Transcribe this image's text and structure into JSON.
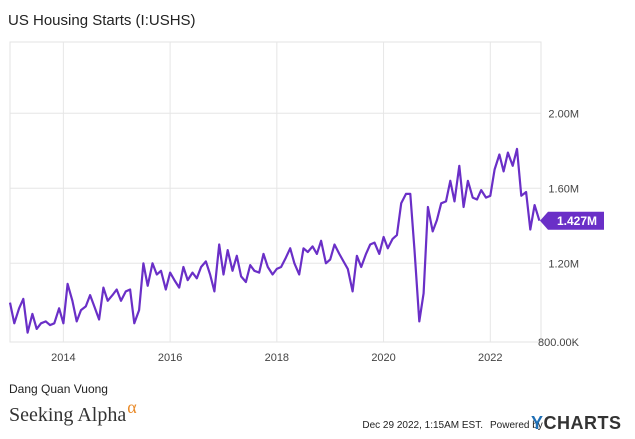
{
  "chart_data": {
    "type": "line",
    "title": "US Housing Starts (I:USHS)",
    "xlabel": "",
    "ylabel": "",
    "x_ticks": [
      "2014",
      "2016",
      "2018",
      "2020",
      "2022"
    ],
    "y_ticks": [
      "800.00K",
      "1.20M",
      "1.60M",
      "2.00M"
    ],
    "y_tick_values": [
      800000,
      1200000,
      1600000,
      2000000
    ],
    "xlim": [
      2013.0,
      2022.95
    ],
    "ylim": [
      780000,
      2380000
    ],
    "grid": true,
    "series": [
      {
        "color": "#6a2fc7",
        "last_value_label": "1.427M",
        "points": [
          [
            2013.0,
            990000
          ],
          [
            2013.08,
            880000
          ],
          [
            2013.17,
            960000
          ],
          [
            2013.25,
            1010000
          ],
          [
            2013.33,
            830000
          ],
          [
            2013.42,
            930000
          ],
          [
            2013.5,
            850000
          ],
          [
            2013.58,
            880000
          ],
          [
            2013.67,
            890000
          ],
          [
            2013.75,
            870000
          ],
          [
            2013.83,
            880000
          ],
          [
            2013.92,
            960000
          ],
          [
            2014.0,
            880000
          ],
          [
            2014.08,
            1090000
          ],
          [
            2014.17,
            1000000
          ],
          [
            2014.25,
            890000
          ],
          [
            2014.33,
            950000
          ],
          [
            2014.42,
            970000
          ],
          [
            2014.5,
            1030000
          ],
          [
            2014.58,
            970000
          ],
          [
            2014.67,
            900000
          ],
          [
            2014.75,
            1070000
          ],
          [
            2014.83,
            1000000
          ],
          [
            2014.92,
            1030000
          ],
          [
            2015.0,
            1060000
          ],
          [
            2015.08,
            1000000
          ],
          [
            2015.17,
            1050000
          ],
          [
            2015.25,
            1060000
          ],
          [
            2015.33,
            880000
          ],
          [
            2015.42,
            950000
          ],
          [
            2015.5,
            1200000
          ],
          [
            2015.58,
            1080000
          ],
          [
            2015.67,
            1200000
          ],
          [
            2015.75,
            1140000
          ],
          [
            2015.83,
            1160000
          ],
          [
            2015.92,
            1060000
          ],
          [
            2016.0,
            1150000
          ],
          [
            2016.08,
            1110000
          ],
          [
            2016.17,
            1070000
          ],
          [
            2016.25,
            1180000
          ],
          [
            2016.33,
            1110000
          ],
          [
            2016.42,
            1150000
          ],
          [
            2016.5,
            1120000
          ],
          [
            2016.58,
            1180000
          ],
          [
            2016.67,
            1210000
          ],
          [
            2016.75,
            1140000
          ],
          [
            2016.83,
            1050000
          ],
          [
            2016.92,
            1300000
          ],
          [
            2017.0,
            1140000
          ],
          [
            2017.08,
            1270000
          ],
          [
            2017.17,
            1160000
          ],
          [
            2017.25,
            1240000
          ],
          [
            2017.33,
            1130000
          ],
          [
            2017.42,
            1100000
          ],
          [
            2017.5,
            1190000
          ],
          [
            2017.58,
            1160000
          ],
          [
            2017.67,
            1150000
          ],
          [
            2017.75,
            1250000
          ],
          [
            2017.83,
            1180000
          ],
          [
            2017.92,
            1140000
          ],
          [
            2018.0,
            1170000
          ],
          [
            2018.08,
            1180000
          ],
          [
            2018.17,
            1230000
          ],
          [
            2018.25,
            1280000
          ],
          [
            2018.33,
            1200000
          ],
          [
            2018.42,
            1140000
          ],
          [
            2018.5,
            1280000
          ],
          [
            2018.58,
            1260000
          ],
          [
            2018.67,
            1290000
          ],
          [
            2018.75,
            1250000
          ],
          [
            2018.83,
            1320000
          ],
          [
            2018.92,
            1200000
          ],
          [
            2019.0,
            1220000
          ],
          [
            2019.08,
            1300000
          ],
          [
            2019.17,
            1250000
          ],
          [
            2019.25,
            1210000
          ],
          [
            2019.33,
            1170000
          ],
          [
            2019.42,
            1050000
          ],
          [
            2019.5,
            1240000
          ],
          [
            2019.58,
            1180000
          ],
          [
            2019.67,
            1250000
          ],
          [
            2019.75,
            1300000
          ],
          [
            2019.83,
            1310000
          ],
          [
            2019.92,
            1250000
          ],
          [
            2020.0,
            1340000
          ],
          [
            2020.08,
            1280000
          ],
          [
            2020.17,
            1330000
          ],
          [
            2020.25,
            1350000
          ],
          [
            2020.33,
            1520000
          ],
          [
            2020.42,
            1570000
          ],
          [
            2020.5,
            1570000
          ],
          [
            2020.58,
            1270000
          ],
          [
            2020.67,
            890000
          ],
          [
            2020.75,
            1040000
          ],
          [
            2020.83,
            1500000
          ],
          [
            2020.92,
            1370000
          ],
          [
            2021.0,
            1430000
          ],
          [
            2021.08,
            1520000
          ],
          [
            2021.17,
            1530000
          ],
          [
            2021.25,
            1640000
          ],
          [
            2021.33,
            1530000
          ],
          [
            2021.42,
            1720000
          ],
          [
            2021.5,
            1500000
          ],
          [
            2021.58,
            1640000
          ],
          [
            2021.67,
            1550000
          ],
          [
            2021.75,
            1540000
          ],
          [
            2021.83,
            1590000
          ],
          [
            2021.92,
            1550000
          ],
          [
            2022.0,
            1560000
          ],
          [
            2022.08,
            1700000
          ],
          [
            2022.17,
            1780000
          ],
          [
            2022.25,
            1690000
          ],
          [
            2022.33,
            1790000
          ],
          [
            2022.42,
            1720000
          ],
          [
            2022.5,
            1810000
          ],
          [
            2022.58,
            1560000
          ],
          [
            2022.67,
            1580000
          ],
          [
            2022.75,
            1380000
          ],
          [
            2022.83,
            1510000
          ],
          [
            2022.92,
            1427000
          ]
        ]
      }
    ]
  },
  "footer": {
    "author": "Dang Quan Vuong",
    "brand": "Seeking Alpha",
    "brand_symbol": "α",
    "timestamp": "Dec 29 2022, 1:15AM EST.",
    "powered_by": "Powered by",
    "provider": "CHARTS",
    "provider_initial": "Y"
  }
}
